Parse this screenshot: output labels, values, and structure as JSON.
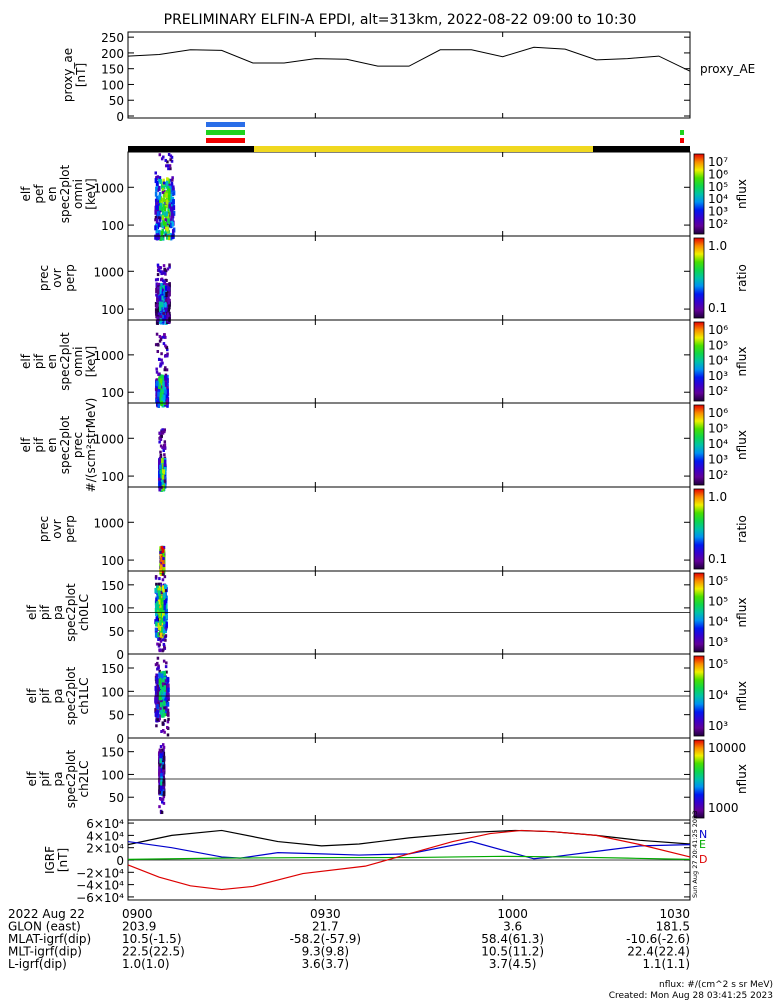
{
  "header": {
    "title": "PRELIMINARY ELFIN-A EPDI, alt=313km, 2022-08-22 09:00 to 10:30"
  },
  "colors": {
    "north": "#0000cc",
    "east": "#00aa00",
    "down": "#dd0000",
    "mag": "#000000",
    "sunlit": "#f0d820",
    "shadow": "#000000",
    "flag_blue": "#2a6ee8",
    "flag_green": "#1ed31e",
    "flag_red": "#f00000"
  },
  "chart_data": [
    {
      "id": "proxy_ae",
      "type": "line",
      "ylabel": "proxy_ae\n[nT]",
      "right_label": "proxy_AE",
      "ylim": [
        0,
        260
      ],
      "yticks": [
        "250",
        "200",
        "150",
        "100",
        "50",
        "0"
      ],
      "x": [
        0,
        5,
        10,
        15,
        20,
        25,
        30,
        35,
        40,
        45,
        50,
        55,
        60,
        65,
        70,
        75,
        80,
        85,
        90
      ],
      "values": [
        190,
        195,
        210,
        208,
        168,
        168,
        182,
        180,
        158,
        158,
        210,
        210,
        188,
        218,
        212,
        178,
        182,
        190,
        142
      ]
    },
    {
      "id": "elf_pef_en_spec2plot_omni",
      "type": "heatmap",
      "ylabel": "elf\npef\nen\nspec2plot\nomni\n[keV]",
      "yticks": [
        "1000",
        "100"
      ],
      "scale": "log",
      "colorbar": {
        "label": "nflux",
        "ticks": [
          "10⁷",
          "10⁶",
          "10⁵",
          "10⁴",
          "10³",
          "10²"
        ]
      }
    },
    {
      "id": "elf_pef_prec_ovr_perp",
      "type": "heatmap",
      "ylabel": "prec\novr\nperp",
      "yticks": [
        "1000",
        "100"
      ],
      "scale": "log",
      "colorbar": {
        "label": "ratio",
        "ticks": [
          "1.0",
          "0.1"
        ]
      }
    },
    {
      "id": "elf_pif_en_spec2plot_omni",
      "type": "heatmap",
      "ylabel": "elf\npif\nen\nspec2plot\nomni\n[keV]",
      "yticks": [
        "1000",
        "100"
      ],
      "scale": "log",
      "colorbar": {
        "label": "nflux",
        "ticks": [
          "10⁶",
          "10⁵",
          "10⁴",
          "10³",
          "10²"
        ]
      }
    },
    {
      "id": "elf_pif_en_spec2plot_prec",
      "type": "heatmap",
      "ylabel": "elf\npif\nen\nspec2plot\nprec\n#/(scm²strMeV)",
      "yticks": [
        "1000",
        "100"
      ],
      "scale": "log",
      "colorbar": {
        "label": "nflux",
        "ticks": [
          "10⁶",
          "10⁵",
          "10⁴",
          "10³",
          "10²"
        ]
      }
    },
    {
      "id": "elf_pif_prec_ovr_perp",
      "type": "heatmap",
      "ylabel": "prec\novr\nperp",
      "yticks": [
        "1000",
        "100"
      ],
      "scale": "log",
      "colorbar": {
        "label": "ratio",
        "ticks": [
          "1.0",
          "0.1"
        ]
      }
    },
    {
      "id": "elf_pif_pa_spec2plot_ch0LC",
      "type": "heatmap",
      "ylabel": "elf\npif\npa\nspec2plot\nch0LC",
      "yticks": [
        "150",
        "100",
        "50",
        "0"
      ],
      "ylim": [
        0,
        180
      ],
      "colorbar": {
        "label": "nflux",
        "ticks": [
          "10⁵",
          "10⁵",
          "10⁴",
          "10³"
        ]
      }
    },
    {
      "id": "elf_pif_pa_spec2plot_ch1LC",
      "type": "heatmap",
      "ylabel": "elf\npif\npa\nspec2plot\nch1LC",
      "yticks": [
        "150",
        "100",
        "50",
        "0"
      ],
      "ylim": [
        0,
        180
      ],
      "colorbar": {
        "label": "nflux",
        "ticks": [
          "10⁵",
          "10⁴",
          "10³"
        ]
      }
    },
    {
      "id": "elf_pif_pa_spec2plot_ch2LC",
      "type": "heatmap",
      "ylabel": "elf\npif\npa\nspec2plot\nch2LC",
      "yticks": [
        "150",
        "100",
        "50"
      ],
      "ylim": [
        0,
        180
      ],
      "colorbar": {
        "label": "nflux",
        "ticks": [
          "10000",
          "1000"
        ]
      }
    },
    {
      "id": "igrf",
      "type": "line",
      "ylabel": "IGRF\n[nT]",
      "ylim": [
        -65000,
        65000
      ],
      "yticks": [
        "6×10⁴",
        "4×10⁴",
        "2×10⁴",
        "0",
        "−2×10⁴",
        "−4×10⁴",
        "−6×10⁴"
      ],
      "side_labels": [
        "N",
        "E",
        "D"
      ],
      "series": [
        {
          "key": "mag",
          "x": [
            0,
            7,
            15,
            24,
            31,
            37,
            45,
            55,
            62,
            68,
            75,
            82,
            90
          ],
          "values": [
            25000,
            40000,
            48000,
            30000,
            23000,
            26000,
            36000,
            45000,
            48000,
            46000,
            40000,
            32000,
            26000
          ]
        },
        {
          "key": "north",
          "x": [
            0,
            7,
            15,
            18,
            24,
            31,
            37,
            45,
            55,
            65,
            68,
            75,
            82,
            90
          ],
          "values": [
            30000,
            20000,
            5000,
            3000,
            12000,
            10000,
            8000,
            10000,
            30000,
            2000,
            5000,
            14000,
            23000,
            25000
          ]
        },
        {
          "key": "east",
          "x": [
            0,
            15,
            30,
            45,
            60,
            70,
            80,
            90
          ],
          "values": [
            1000,
            3000,
            4000,
            4000,
            6000,
            5000,
            3000,
            1000
          ]
        },
        {
          "key": "down",
          "x": [
            0,
            5,
            10,
            15,
            20,
            28,
            38,
            45,
            52,
            58,
            63,
            68,
            75,
            82,
            90
          ],
          "values": [
            -8000,
            -28000,
            -42000,
            -48000,
            -43000,
            -22000,
            -10000,
            10000,
            30000,
            43000,
            48000,
            46000,
            40000,
            25000,
            5000
          ]
        }
      ]
    }
  ],
  "axis": {
    "ticks": [
      "0900",
      "0930",
      "1000",
      "1030"
    ],
    "rows": [
      {
        "label": "2022 Aug 22",
        "values": [
          "0900",
          "0930",
          "1000",
          "1030"
        ]
      },
      {
        "label": "GLON (east)",
        "values": [
          "203.9",
          "21.7",
          "3.6",
          "181.5"
        ]
      },
      {
        "label": "MLAT-igrf(dip)",
        "values": [
          "10.5(-1.5)",
          "-58.2(-57.9)",
          "58.4(61.3)",
          "-10.6(-2.6)"
        ]
      },
      {
        "label": "MLT-igrf(dip)",
        "values": [
          "22.5(22.5)",
          "9.3(9.8)",
          "10.5(11.2)",
          "22.4(22.4)"
        ]
      },
      {
        "label": "L-igrf(dip)",
        "values": [
          "1.0(1.0)",
          "3.6(3.7)",
          "3.7(4.5)",
          "1.1(1.1)"
        ]
      }
    ]
  },
  "timestamp_vertical": "Sun Aug 27 20:41:25 2023",
  "footer": {
    "units": "nflux: #/(cm^2 s sr MeV)",
    "created": "Created: Mon Aug 28 03:41:25 2023"
  }
}
